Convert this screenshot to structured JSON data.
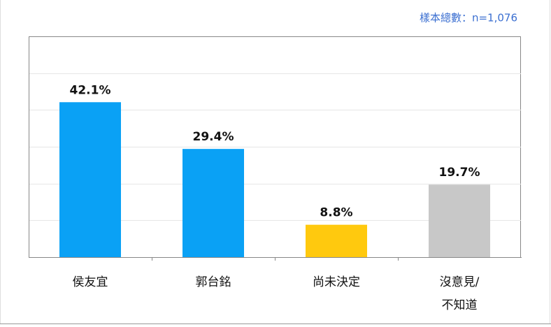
{
  "chart_data": {
    "type": "bar",
    "note": "樣本總數：n=1,076",
    "categories": [
      [
        "侯友宜"
      ],
      [
        "郭台銘"
      ],
      [
        "尚未決定"
      ],
      [
        "沒意見/",
        "不知道"
      ]
    ],
    "values": [
      42.1,
      29.4,
      8.8,
      19.7
    ],
    "value_labels": [
      "42.1%",
      "29.4%",
      "8.8%",
      "19.7%"
    ],
    "colors": [
      "#0aa1f5",
      "#0aa1f5",
      "#ffc90e",
      "#c8c8c8"
    ],
    "ylim": [
      0,
      60
    ],
    "grid_lines": [
      10,
      20,
      30,
      40,
      50
    ],
    "grid": true
  }
}
